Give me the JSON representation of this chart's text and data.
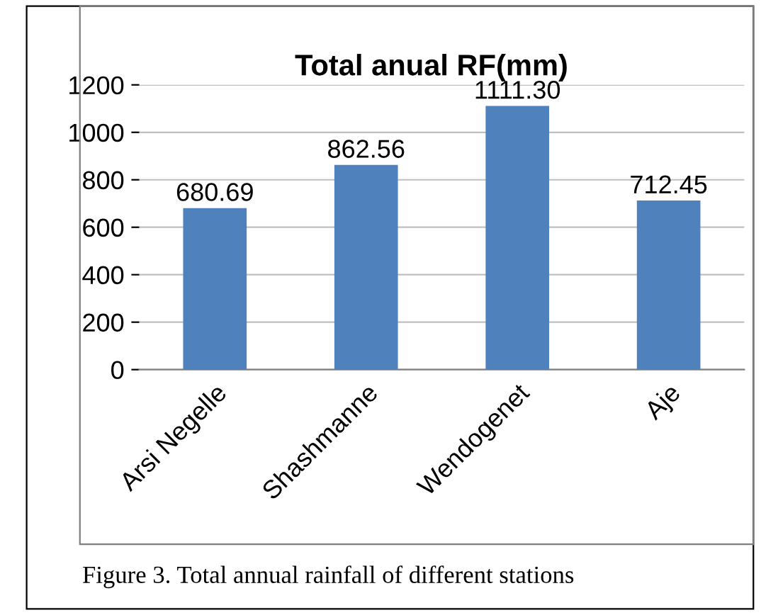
{
  "chart_data": {
    "type": "bar",
    "title": "Total anual RF(mm)",
    "categories": [
      "Arsi Negelle",
      "Shashmanne",
      "Wendogenet",
      "Aje"
    ],
    "values": [
      680.69,
      862.56,
      1111.3,
      712.45
    ],
    "value_labels": [
      "680.69",
      "862.56",
      "1111.30",
      "712.45"
    ],
    "color": "#4f81bd",
    "ylim": [
      0,
      1200
    ],
    "yticks": [
      0,
      200,
      400,
      600,
      800,
      1000,
      1200
    ],
    "grid": "y",
    "annotations": [
      "Figure 3. Total annual rainfall of different stations"
    ]
  }
}
